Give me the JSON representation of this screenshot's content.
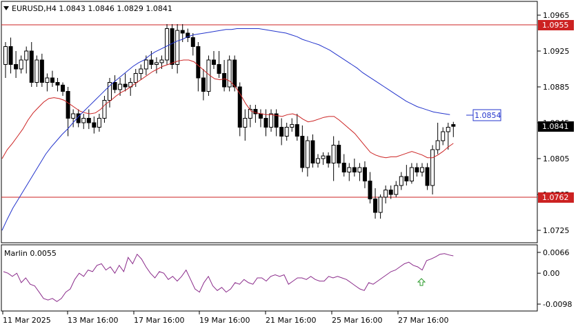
{
  "header": {
    "symbol_text": "EURUSD,H4  1.0843  1.0846  1.0829  1.0841"
  },
  "indicator": {
    "label": "Marlin 0.0055",
    "arrow_icon": "up-arrow-icon"
  },
  "colors": {
    "background": "#ffffff",
    "grid": "#c8c8c8",
    "candle": "#000000",
    "red_line": "#cc2222",
    "blue_line": "#2233cc",
    "marlin_line": "#8a2a8a",
    "signal_arrow": "#2a9a2a",
    "current_price_bg": "#000000"
  },
  "price_axis": {
    "ticks": [
      "1.0965",
      "1.0925",
      "1.0885",
      "1.0845",
      "1.0805",
      "1.0765",
      "1.0725"
    ]
  },
  "price_labels": {
    "upper_level": "1.0955",
    "lower_level": "1.0762",
    "ma_value": "1.0854",
    "current": "1.0841"
  },
  "indicator_axis": {
    "ticks": [
      "0.0066",
      "0.00",
      "-0.0098"
    ]
  },
  "time_axis": {
    "labels": [
      "11 Mar 2025",
      "13 Mar 16:00",
      "17 Mar 16:00",
      "19 Mar 16:00",
      "21 Mar 16:00",
      "25 Mar 16:00",
      "27 Mar 16:00"
    ]
  },
  "chart_data": {
    "type": "line",
    "title": "EURUSD,H4",
    "ohlc": {
      "open": 1.0843,
      "high": 1.0846,
      "low": 1.0829,
      "close": 1.0841
    },
    "price_ylim": [
      1.0715,
      1.0975
    ],
    "horizontal_levels": [
      1.0955,
      1.0762
    ],
    "ma_last_value": 1.0854,
    "current_price": 1.0841,
    "x_labels": [
      "11 Mar 2025",
      "13 Mar 16:00",
      "17 Mar 16:00",
      "19 Mar 16:00",
      "21 Mar 16:00",
      "25 Mar 16:00",
      "27 Mar 16:00"
    ],
    "candles": [
      [
        1.091,
        1.0935,
        1.0895,
        1.093
      ],
      [
        1.093,
        1.094,
        1.09,
        1.091
      ],
      [
        1.091,
        1.0925,
        1.0895,
        1.0905
      ],
      [
        1.0905,
        1.092,
        1.09,
        1.0915
      ],
      [
        1.0915,
        1.093,
        1.09,
        1.0925
      ],
      [
        1.0925,
        1.0935,
        1.0885,
        1.089
      ],
      [
        1.089,
        1.092,
        1.0885,
        1.0915
      ],
      [
        1.0915,
        1.0922,
        1.0885,
        1.089
      ],
      [
        1.089,
        1.09,
        1.088,
        1.0895
      ],
      [
        1.0895,
        1.0903,
        1.0885,
        1.089
      ],
      [
        1.089,
        1.0895,
        1.088,
        1.0887
      ],
      [
        1.0887,
        1.089,
        1.0875,
        1.088
      ],
      [
        1.088,
        1.0885,
        1.083,
        1.085
      ],
      [
        1.085,
        1.086,
        1.084,
        1.0855
      ],
      [
        1.0855,
        1.086,
        1.084,
        1.0845
      ],
      [
        1.0845,
        1.0855,
        1.0838,
        1.085
      ],
      [
        1.085,
        1.086,
        1.0838,
        1.0845
      ],
      [
        1.0845,
        1.0852,
        1.0833,
        1.084
      ],
      [
        1.084,
        1.0855,
        1.0835,
        1.085
      ],
      [
        1.085,
        1.0875,
        1.0845,
        1.087
      ],
      [
        1.087,
        1.0895,
        1.0862,
        1.089
      ],
      [
        1.089,
        1.0898,
        1.0878,
        1.0882
      ],
      [
        1.0882,
        1.0895,
        1.0875,
        1.0888
      ],
      [
        1.0888,
        1.09,
        1.088,
        1.0885
      ],
      [
        1.0885,
        1.0895,
        1.0875,
        1.089
      ],
      [
        1.089,
        1.0905,
        1.0885,
        1.09
      ],
      [
        1.09,
        1.091,
        1.0893,
        1.0905
      ],
      [
        1.0905,
        1.092,
        1.0898,
        1.0915
      ],
      [
        1.0915,
        1.0925,
        1.0905,
        1.091
      ],
      [
        1.091,
        1.0918,
        1.09,
        1.0912
      ],
      [
        1.0912,
        1.092,
        1.0905,
        1.0915
      ],
      [
        1.0915,
        1.0955,
        1.091,
        1.095
      ],
      [
        1.095,
        1.0955,
        1.0905,
        1.091
      ],
      [
        1.091,
        1.0955,
        1.09,
        1.0948
      ],
      [
        1.0948,
        1.0955,
        1.0935,
        1.0945
      ],
      [
        1.0945,
        1.095,
        1.0935,
        1.094
      ],
      [
        1.094,
        1.0945,
        1.092,
        1.093
      ],
      [
        1.093,
        1.0935,
        1.088,
        1.0895
      ],
      [
        1.0895,
        1.0905,
        1.087,
        1.088
      ],
      [
        1.088,
        1.092,
        1.0875,
        1.0915
      ],
      [
        1.0915,
        1.0925,
        1.0905,
        1.091
      ],
      [
        1.091,
        1.0925,
        1.0895,
        1.09
      ],
      [
        1.09,
        1.0915,
        1.088,
        1.0885
      ],
      [
        1.0885,
        1.092,
        1.088,
        1.0915
      ],
      [
        1.0915,
        1.092,
        1.088,
        1.0885
      ],
      [
        1.0885,
        1.089,
        1.083,
        1.084
      ],
      [
        1.084,
        1.086,
        1.0825,
        1.085
      ],
      [
        1.085,
        1.0865,
        1.084,
        1.086
      ],
      [
        1.086,
        1.0865,
        1.0845,
        1.0855
      ],
      [
        1.0855,
        1.086,
        1.084,
        1.085
      ],
      [
        1.085,
        1.086,
        1.083,
        1.084
      ],
      [
        1.084,
        1.086,
        1.0835,
        1.0855
      ],
      [
        1.0855,
        1.086,
        1.083,
        1.084
      ],
      [
        1.084,
        1.085,
        1.082,
        1.083
      ],
      [
        1.083,
        1.0845,
        1.0825,
        1.084
      ],
      [
        1.084,
        1.085,
        1.0835,
        1.0843
      ],
      [
        1.0843,
        1.0855,
        1.0825,
        1.083
      ],
      [
        1.083,
        1.0842,
        1.079,
        1.0795
      ],
      [
        1.0795,
        1.083,
        1.0785,
        1.0825
      ],
      [
        1.0825,
        1.0832,
        1.0795,
        1.08
      ],
      [
        1.08,
        1.081,
        1.0795,
        1.0805
      ],
      [
        1.0805,
        1.0812,
        1.0798,
        1.0808
      ],
      [
        1.0808,
        1.0812,
        1.0795,
        1.08
      ],
      [
        1.08,
        1.083,
        1.078,
        1.082
      ],
      [
        1.082,
        1.0825,
        1.0795,
        1.08
      ],
      [
        1.08,
        1.081,
        1.0785,
        1.079
      ],
      [
        1.079,
        1.08,
        1.078,
        1.0795
      ],
      [
        1.0795,
        1.0805,
        1.0785,
        1.079
      ],
      [
        1.079,
        1.08,
        1.078,
        1.0795
      ],
      [
        1.0795,
        1.0802,
        1.0772,
        1.078
      ],
      [
        1.078,
        1.079,
        1.0755,
        1.076
      ],
      [
        1.076,
        1.0772,
        1.0738,
        1.0745
      ],
      [
        1.0745,
        1.0765,
        1.0738,
        1.0762
      ],
      [
        1.0762,
        1.0775,
        1.0755,
        1.077
      ],
      [
        1.077,
        1.0775,
        1.076,
        1.0765
      ],
      [
        1.0765,
        1.078,
        1.0762,
        1.0775
      ],
      [
        1.0775,
        1.079,
        1.077,
        1.0785
      ],
      [
        1.0785,
        1.0798,
        1.0775,
        1.078
      ],
      [
        1.078,
        1.08,
        1.0777,
        1.0795
      ],
      [
        1.0795,
        1.08,
        1.0785,
        1.079
      ],
      [
        1.079,
        1.08,
        1.0785,
        1.0795
      ],
      [
        1.0795,
        1.08,
        1.077,
        1.0775
      ],
      [
        1.0775,
        1.082,
        1.0765,
        1.0815
      ],
      [
        1.0815,
        1.0845,
        1.081,
        1.0825
      ],
      [
        1.0825,
        1.084,
        1.082,
        1.0835
      ],
      [
        1.0835,
        1.0845,
        1.0815,
        1.084
      ],
      [
        1.0843,
        1.0846,
        1.0829,
        1.0841
      ]
    ],
    "ma_fast": [
      1.0805,
      1.0815,
      1.0822,
      1.083,
      1.0838,
      1.0848,
      1.0856,
      1.0862,
      1.0868,
      1.0872,
      1.0873,
      1.0872,
      1.087,
      1.0866,
      1.0862,
      1.0858,
      1.0856,
      1.0855,
      1.0856,
      1.086,
      1.0866,
      1.087,
      1.0875,
      1.0879,
      1.0882,
      1.0886,
      1.089,
      1.0894,
      1.0898,
      1.0902,
      1.0905,
      1.0908,
      1.091,
      1.0912,
      1.0914,
      1.0915,
      1.0915,
      1.0913,
      1.0908,
      1.0903,
      1.0898,
      1.0894,
      1.0893,
      1.0894,
      1.0891,
      1.0885,
      1.0876,
      1.0866,
      1.0858,
      1.0856,
      1.0855,
      1.0854,
      1.0854,
      1.0853,
      1.0852,
      1.0854,
      1.0855,
      1.0853,
      1.0849,
      1.0846,
      1.0847,
      1.0849,
      1.0851,
      1.0852,
      1.0852,
      1.0848,
      1.0843,
      1.0838,
      1.0833,
      1.0826,
      1.0819,
      1.0812,
      1.0809,
      1.0807,
      1.0806,
      1.0807,
      1.0807,
      1.0809,
      1.0811,
      1.0813,
      1.0811,
      1.0809,
      1.0806,
      1.0806,
      1.0809,
      1.0813,
      1.0818,
      1.0822
    ],
    "ma_slow": [
      1.0725,
      1.0738,
      1.075,
      1.076,
      1.077,
      1.078,
      1.079,
      1.08,
      1.081,
      1.0818,
      1.0825,
      1.0832,
      1.0838,
      1.0845,
      1.0852,
      1.0858,
      1.0864,
      1.087,
      1.0876,
      1.0882,
      1.0888,
      1.0893,
      1.0898,
      1.0903,
      1.0908,
      1.0912,
      1.0915,
      1.092,
      1.0924,
      1.0927,
      1.093,
      1.0933,
      1.0936,
      1.0938,
      1.0941,
      1.0943,
      1.0944,
      1.0945,
      1.0946,
      1.0947,
      1.0948,
      1.0949,
      1.0949,
      1.095,
      1.095,
      1.095,
      1.095,
      1.095,
      1.0949,
      1.0948,
      1.0947,
      1.0946,
      1.0945,
      1.0943,
      1.0941,
      1.0938,
      1.0936,
      1.0934,
      1.0932,
      1.0929,
      1.0926,
      1.0922,
      1.0918,
      1.0914,
      1.091,
      1.0906,
      1.0901,
      1.0897,
      1.0893,
      1.0889,
      1.0885,
      1.0881,
      1.0877,
      1.0873,
      1.0869,
      1.0866,
      1.0863,
      1.0861,
      1.0859,
      1.0857,
      1.0856,
      1.0855,
      1.0854
    ],
    "marlin": {
      "name": "Marlin",
      "last_value": 0.0055,
      "ylim": [
        -0.0105,
        0.0075
      ],
      "values": [
        0.0005,
        0.0,
        -0.001,
        0.0,
        -0.003,
        -0.0015,
        -0.0035,
        -0.004,
        -0.006,
        -0.008,
        -0.0085,
        -0.008,
        -0.009,
        -0.008,
        -0.006,
        -0.005,
        -0.002,
        0.0,
        -0.001,
        0.001,
        0.0005,
        0.0025,
        0.003,
        0.001,
        0.002,
        0.0,
        0.0025,
        0.0005,
        0.005,
        0.003,
        0.006,
        0.0045,
        0.002,
        0.0,
        -0.0015,
        0.0005,
        0.0,
        -0.002,
        -0.001,
        -0.0025,
        -0.001,
        0.001,
        -0.002,
        -0.005,
        -0.006,
        -0.003,
        -0.001,
        -0.004,
        -0.0055,
        -0.0045,
        -0.006,
        -0.005,
        -0.003,
        -0.0035,
        -0.002,
        -0.003,
        -0.0035,
        -0.0015,
        -0.0015,
        -0.0025,
        -0.001,
        -0.0005,
        -0.001,
        -0.0005,
        -0.0035,
        -0.0025,
        -0.0015,
        -0.0015,
        -0.002,
        -0.001,
        -0.002,
        -0.0025,
        -0.0025,
        -0.001,
        -0.0015,
        -0.001,
        -0.0015,
        -0.002,
        -0.003,
        -0.004,
        -0.005,
        -0.0055,
        -0.003,
        -0.0035,
        -0.0025,
        -0.0015,
        -0.0005,
        0.0005,
        0.001,
        0.002,
        0.003,
        0.0035,
        0.0025,
        0.002,
        0.001,
        0.004,
        0.0045,
        0.0052,
        0.006,
        0.0062,
        0.0058,
        0.0055
      ]
    }
  }
}
